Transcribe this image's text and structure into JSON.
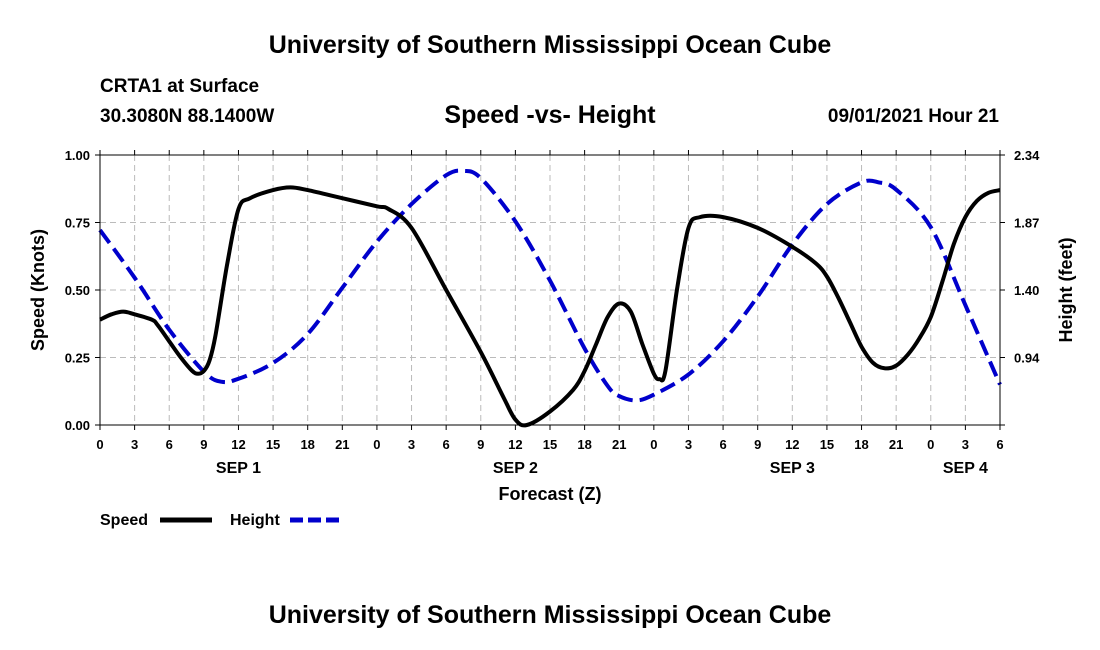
{
  "header": {
    "title": "University of Southern Mississippi Ocean Cube",
    "station": "CRTA1 at Surface",
    "coordinates": "30.3080N  88.1400W",
    "subtitle": "Speed -vs- Height",
    "datetime": "09/01/2021 Hour 21"
  },
  "footer": {
    "title": "University of Southern Mississippi Ocean Cube"
  },
  "colors": {
    "speed": "#000000",
    "height": "#0000cc",
    "grid": "#bbbbbb"
  },
  "chart_data": {
    "type": "line",
    "title": "Speed -vs- Height",
    "xlabel": "Forecast (Z)",
    "ylabel": "Speed (Knots)",
    "y2label": "Height (feet)",
    "xlim": [
      0,
      78
    ],
    "ylim": [
      0,
      1
    ],
    "y2lim": [
      0.47,
      2.34
    ],
    "x_ticks": [
      0,
      3,
      6,
      9,
      12,
      15,
      18,
      21,
      24,
      27,
      30,
      33,
      36,
      39,
      42,
      45,
      48,
      51,
      54,
      57,
      60,
      63,
      66,
      69,
      72,
      75,
      78
    ],
    "x_tick_labels": [
      "0",
      "3",
      "6",
      "9",
      "12",
      "15",
      "18",
      "21",
      "0",
      "3",
      "6",
      "9",
      "12",
      "15",
      "18",
      "21",
      "0",
      "3",
      "6",
      "9",
      "12",
      "15",
      "18",
      "21",
      "0",
      "3",
      "6"
    ],
    "day_labels": [
      {
        "x": 12,
        "label": "SEP 1"
      },
      {
        "x": 36,
        "label": "SEP 2"
      },
      {
        "x": 60,
        "label": "SEP 3"
      },
      {
        "x": 75,
        "label": "SEP 4"
      }
    ],
    "y_ticks": [
      0,
      0.25,
      0.5,
      0.75,
      1.0
    ],
    "y_tick_labels": [
      "0.00",
      "0.25",
      "0.50",
      "0.75",
      "1.00"
    ],
    "y2_tick_labels": [
      "0.94",
      "1.40",
      "1.87",
      "2.34"
    ],
    "grid": true,
    "legend": "bottom-left",
    "series": [
      {
        "name": "Speed",
        "style": "solid",
        "x": [
          0,
          1,
          2,
          3,
          4.5,
          5,
          6,
          7,
          8,
          8.5,
          9,
          9.5,
          10,
          11,
          12,
          13,
          15,
          16.5,
          18,
          21,
          24,
          25,
          27,
          30,
          33,
          35,
          36,
          37,
          39,
          41,
          42,
          43,
          44,
          45,
          46,
          47,
          48,
          48.5,
          49,
          50,
          51,
          52,
          54,
          57,
          60,
          62,
          63,
          64,
          65,
          66,
          67,
          68,
          69,
          70,
          71,
          72,
          73,
          74,
          75,
          76,
          77,
          78
        ],
        "values": [
          0.39,
          0.41,
          0.42,
          0.41,
          0.39,
          0.37,
          0.31,
          0.25,
          0.2,
          0.19,
          0.2,
          0.24,
          0.33,
          0.59,
          0.8,
          0.84,
          0.87,
          0.88,
          0.87,
          0.84,
          0.81,
          0.8,
          0.73,
          0.5,
          0.27,
          0.1,
          0.02,
          0.0,
          0.05,
          0.13,
          0.2,
          0.3,
          0.4,
          0.45,
          0.42,
          0.3,
          0.19,
          0.17,
          0.2,
          0.5,
          0.73,
          0.77,
          0.77,
          0.73,
          0.66,
          0.6,
          0.55,
          0.47,
          0.38,
          0.29,
          0.23,
          0.21,
          0.22,
          0.26,
          0.32,
          0.4,
          0.53,
          0.67,
          0.77,
          0.83,
          0.86,
          0.87
        ]
      },
      {
        "name": "Height",
        "style": "dashed",
        "x": [
          0,
          3,
          6,
          9,
          10.5,
          12,
          15,
          18,
          21,
          24,
          27,
          30,
          31.5,
          33,
          36,
          39,
          42,
          44,
          45,
          46.5,
          48,
          51,
          54,
          57,
          60,
          63,
          66,
          67.5,
          69,
          72,
          75,
          78
        ],
        "values": [
          1.82,
          1.49,
          1.13,
          0.84,
          0.77,
          0.79,
          0.9,
          1.1,
          1.42,
          1.74,
          2.0,
          2.2,
          2.23,
          2.18,
          1.88,
          1.47,
          1.0,
          0.74,
          0.67,
          0.64,
          0.68,
          0.82,
          1.05,
          1.36,
          1.72,
          2.0,
          2.15,
          2.15,
          2.1,
          1.84,
          1.3,
          0.75
        ]
      }
    ]
  },
  "legend": {
    "speed_label": "Speed",
    "height_label": "Height"
  }
}
